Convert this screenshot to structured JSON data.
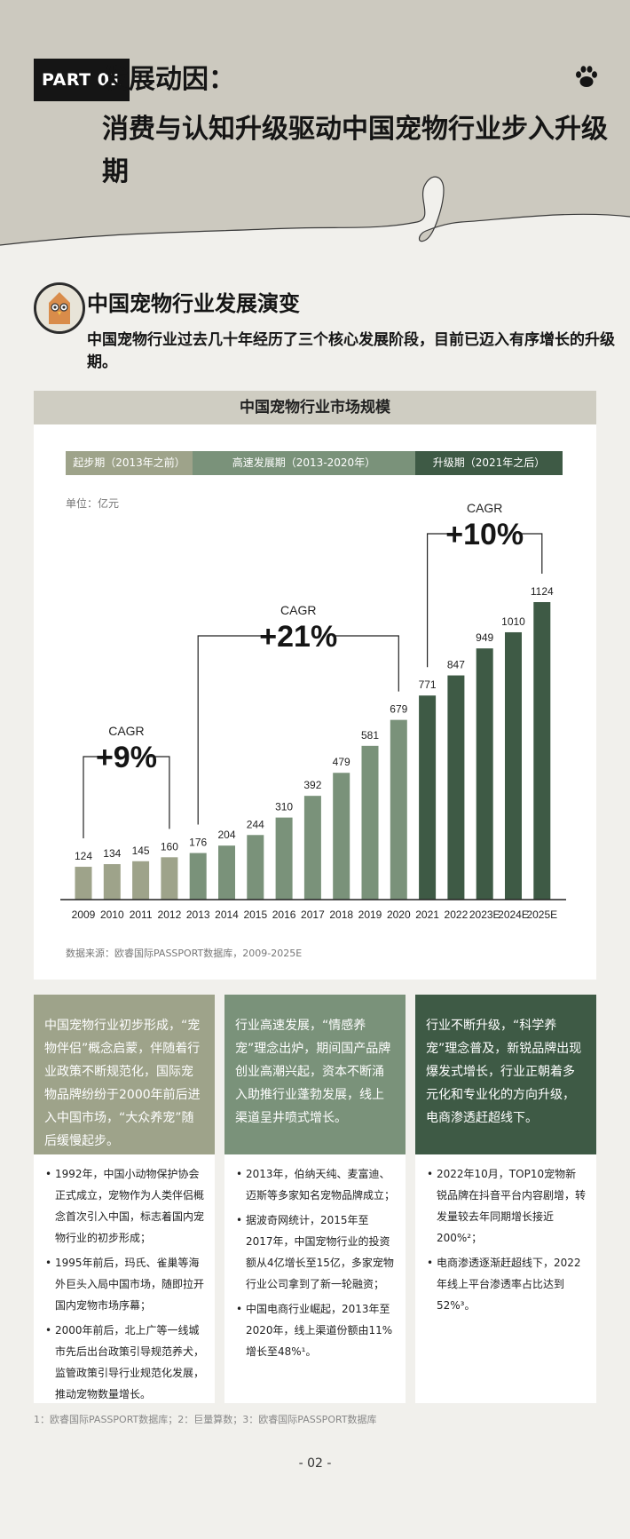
{
  "header": {
    "part_label": "PART 01",
    "title_line1": "发展动因：",
    "title_line2": "消费与认知升级驱动中国宠物行业步入升级期"
  },
  "section": {
    "title": "中国宠物行业发展演变",
    "subtitle": "中国宠物行业过去几十年经历了三个核心发展阶段，目前已迈入有序增长的升级期。"
  },
  "chart_title": "中国宠物行业市场规模",
  "unit_label": "单位：亿元",
  "source_label": "数据来源：欧睿国际PASSPORT数据库，2009-2025E",
  "phases": [
    {
      "label": "起步期（2013年之前）",
      "color": "#9ea38a"
    },
    {
      "label": "高速发展期（2013-2020年）",
      "color": "#7a927a"
    },
    {
      "label": "升级期（2021年之后）",
      "color": "#3e5a45"
    }
  ],
  "cagr": [
    {
      "label": "CAGR",
      "value": "+9%"
    },
    {
      "label": "CAGR",
      "value": "+21%"
    },
    {
      "label": "CAGR",
      "value": "+10%"
    }
  ],
  "chart_data": {
    "type": "bar",
    "title": "中国宠物行业市场规模",
    "ylabel": "单位：亿元",
    "categories": [
      "2009",
      "2010",
      "2011",
      "2012",
      "2013",
      "2014",
      "2015",
      "2016",
      "2017",
      "2018",
      "2019",
      "2020",
      "2021",
      "2022",
      "2023E",
      "2024E",
      "2025E"
    ],
    "values": [
      124,
      134,
      145,
      160,
      176,
      204,
      244,
      310,
      392,
      479,
      581,
      679,
      771,
      847,
      949,
      1010,
      1124
    ],
    "colors": [
      "#9ea38a",
      "#9ea38a",
      "#9ea38a",
      "#9ea38a",
      "#7a927a",
      "#7a927a",
      "#7a927a",
      "#7a927a",
      "#7a927a",
      "#7a927a",
      "#7a927a",
      "#7a927a",
      "#3e5a45",
      "#3e5a45",
      "#3e5a45",
      "#3e5a45",
      "#3e5a45"
    ],
    "ylim": [
      0,
      1124
    ]
  },
  "cards": [
    {
      "color": "#9ea38a",
      "summary": "中国宠物行业初步形成，“宠物伴侣”概念启蒙，伴随着行业政策不断规范化，国际宠物品牌纷纷于2000年前后进入中国市场，“大众养宠”随后缓慢起步。",
      "bullets": [
        "1992年，中国小动物保护协会正式成立，宠物作为人类伴侣概念首次引入中国，标志着国内宠物行业的初步形成；",
        "1995年前后，玛氏、雀巢等海外巨头入局中国市场，随即拉开国内宠物市场序幕；",
        "2000年前后，北上广等一线城市先后出台政策引导规范养犬，监管政策引导行业规范化发展，推动宠物数量增长。"
      ]
    },
    {
      "color": "#7a927a",
      "summary": "行业高速发展，“情感养宠”理念出炉，期间国产品牌创业高潮兴起，资本不断涌入助推行业蓬勃发展，线上渠道呈井喷式增长。",
      "bullets": [
        "2013年，伯纳天纯、麦富迪、迈斯等多家知名宠物品牌成立；",
        "据波奇网统计，2015年至2017年，中国宠物行业的投资额从4亿增长至15亿，多家宠物行业公司拿到了新一轮融资；",
        "中国电商行业崛起，2013年至2020年，线上渠道份额由11%增长至48%¹。"
      ]
    },
    {
      "color": "#3e5a45",
      "summary": "行业不断升级，“科学养宠”理念普及，新锐品牌出现爆发式增长，行业正朝着多元化和专业化的方向升级，电商渗透赶超线下。",
      "bullets": [
        "2022年10月，TOP10宠物新锐品牌在抖音平台内容剧增，转发量较去年同期增长接近200%²；",
        "电商渗透逐渐赶超线下，2022年线上平台渗透率占比达到52%³。"
      ]
    }
  ],
  "footnote": "1：欧睿国际PASSPORT数据库；2：巨量算数；3：欧睿国际PASSPORT数据库",
  "page_number": "- 02 -"
}
